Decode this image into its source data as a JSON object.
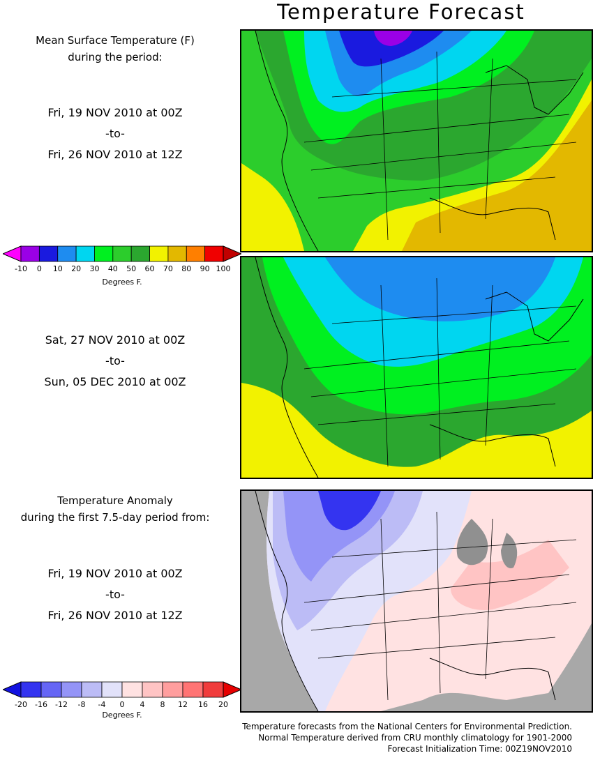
{
  "title": "Temperature Forecast",
  "panels": [
    {
      "caption": [
        "Mean Surface Temperature (F)",
        "during the period:"
      ],
      "range": {
        "start": "Fri, 19 NOV 2010 at 00Z",
        "sep": "-to-",
        "end": "Fri, 26 NOV 2010 at 12Z"
      }
    },
    {
      "caption": [],
      "range": {
        "start": "Sat, 27 NOV 2010 at 00Z",
        "sep": "-to-",
        "end": "Sun, 05 DEC 2010 at 00Z"
      }
    },
    {
      "caption": [
        "Temperature Anomaly",
        "during the first 7.5-day period from:"
      ],
      "range": {
        "start": "Fri, 19 NOV 2010 at 00Z",
        "sep": "-to-",
        "end": "Fri, 26 NOV 2010 at 12Z"
      }
    }
  ],
  "temp_colorbar": {
    "ticks": [
      "-10",
      "0",
      "10",
      "20",
      "30",
      "40",
      "50",
      "60",
      "70",
      "80",
      "90",
      "100"
    ],
    "colors": [
      "#ff00ff",
      "#9a00e6",
      "#1a1adf",
      "#1e8cf0",
      "#00d6f0",
      "#00f020",
      "#2ccd2c",
      "#2ba72f",
      "#f2f200",
      "#e3b800",
      "#ff7f00",
      "#f00000",
      "#c00000"
    ],
    "unit": "Degrees F."
  },
  "anomaly_colorbar": {
    "ticks": [
      "-20",
      "-16",
      "-12",
      "-8",
      "-4",
      "0",
      "4",
      "8",
      "12",
      "16",
      "20"
    ],
    "colors": [
      "#1212e0",
      "#3434f0",
      "#6666f5",
      "#9494f7",
      "#bcbcf6",
      "#e2e2fa",
      "#ffe2e2",
      "#ffc4c4",
      "#ff9e9e",
      "#ff7474",
      "#f03c3c",
      "#e60000"
    ],
    "unit": "Degrees F."
  },
  "footer": [
    "Temperature forecasts from the National Centers for Environmental Prediction.",
    "Normal Temperature derived from CRU monthly climatology for 1901-2000",
    "Forecast Initialization Time: 00Z19NOV2010"
  ]
}
